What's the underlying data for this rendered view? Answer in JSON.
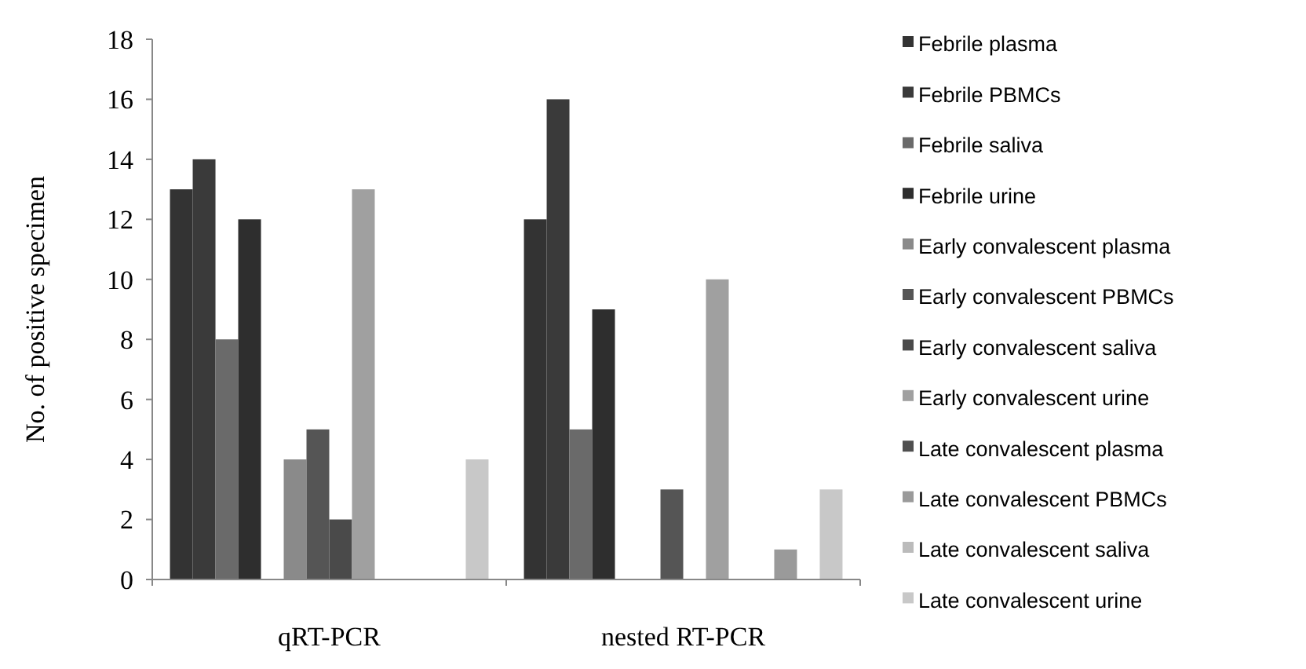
{
  "chart_data": {
    "type": "bar",
    "ylabel": "No. of positive specimen",
    "categories": [
      "qRT-PCR",
      "nested RT-PCR"
    ],
    "series": [
      {
        "name": "Febrile plasma",
        "color": "#333333",
        "values": [
          13,
          12
        ]
      },
      {
        "name": "Febrile PBMCs",
        "color": "#3a3a3a",
        "values": [
          14,
          16
        ]
      },
      {
        "name": "Febrile saliva",
        "color": "#6a6a6a",
        "values": [
          8,
          5
        ]
      },
      {
        "name": "Febrile urine",
        "color": "#2e2e2e",
        "values": [
          12,
          9
        ]
      },
      {
        "name": "Early convalescent plasma",
        "color": "#8a8a8a",
        "values": [
          4,
          0
        ]
      },
      {
        "name": "Early convalescent PBMCs",
        "color": "#555555",
        "values": [
          5,
          3
        ]
      },
      {
        "name": "Early convalescent saliva",
        "color": "#4a4a4a",
        "values": [
          2,
          0
        ]
      },
      {
        "name": "Early convalescent urine",
        "color": "#a0a0a0",
        "values": [
          13,
          10
        ]
      },
      {
        "name": "Late convalescent plasma",
        "color": "#4f4f4f",
        "values": [
          0,
          0
        ]
      },
      {
        "name": "Late convalescent PBMCs",
        "color": "#9a9a9a",
        "values": [
          0,
          1
        ]
      },
      {
        "name": "Late convalescent saliva",
        "color": "#bbbbbb",
        "values": [
          0,
          0
        ]
      },
      {
        "name": "Late convalescent urine",
        "color": "#c8c8c8",
        "values": [
          4,
          3
        ]
      }
    ],
    "ylim": [
      0,
      18
    ],
    "yticks": [
      0,
      2,
      4,
      6,
      8,
      10,
      12,
      14,
      16,
      18
    ],
    "legend": "right"
  }
}
